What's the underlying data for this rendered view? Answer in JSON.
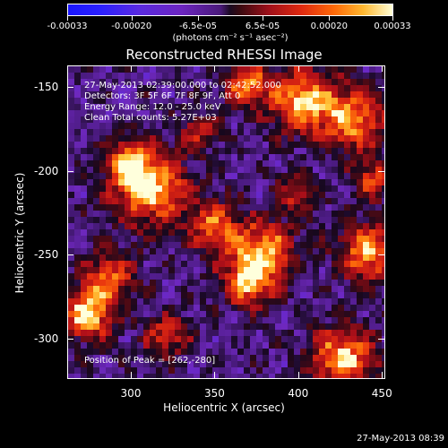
{
  "colorbar": {
    "tick_labels": [
      "-0.00033",
      "-0.00020",
      "-6.5e-05",
      "6.5e-05",
      "0.00020",
      "0.00033"
    ],
    "units": "(photons cm⁻² s⁻¹ asec⁻²)",
    "colors": [
      "#1a16ff",
      "#6c25c0",
      "#1a0a20",
      "#e02a10",
      "#ff6a08",
      "#ffffd8"
    ]
  },
  "title": "Reconstructed RHESSI Image",
  "info_lines": [
    "27-May-2013 02:39:00.000 to 02:42:52.000",
    "Detectors: 3F 5F 6F 7F 8F 9F, Att 0",
    "Energy Range: 12.0 - 25.0 keV",
    "Clean    Total counts: 5.27E+03"
  ],
  "peak_text": "Position of Peak = [262,-280]",
  "axes": {
    "xlabel": "Heliocentric X (arcsec)",
    "ylabel": "Heliocentric Y (arcsec)",
    "x_ticks": [
      "300",
      "350",
      "400",
      "450"
    ],
    "y_ticks": [
      "-150",
      "-200",
      "-250",
      "-300"
    ],
    "x_range": [
      262,
      452
    ],
    "y_range": [
      -324,
      -137
    ]
  },
  "timestamp": "27-May-2013 08:39"
}
